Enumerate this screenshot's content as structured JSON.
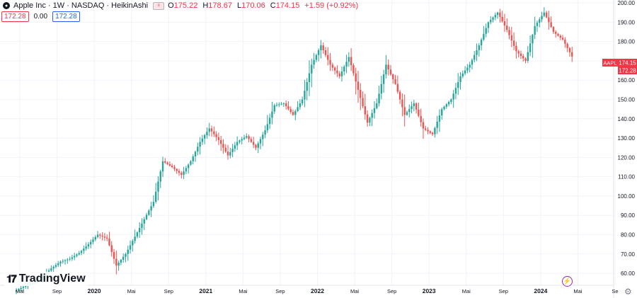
{
  "legend": {
    "title": "Apple Inc · 1W · NASDAQ · HeikinAshi",
    "logo_icon": "apple-icon",
    "o_label": "O",
    "o_value": "175.22",
    "h_label": "H",
    "h_value": "178.67",
    "l_label": "L",
    "l_value": "170.06",
    "c_label": "C",
    "c_value": "174.15",
    "change": "+1.59 (+0.92%)"
  },
  "pills": {
    "bid": "172.28",
    "spread": "0.00",
    "ask": "172.28"
  },
  "brand": {
    "name": "TradingView"
  },
  "colors": {
    "up": "#26a69a",
    "down": "#ef5350",
    "grid": "#f0f3fa",
    "axis_text": "#131722",
    "badge": "#f23645"
  },
  "chart_data": {
    "type": "candlestick",
    "symbol": "AAPL",
    "exchange": "NASDAQ",
    "interval": "1W",
    "style": "HeikinAshi",
    "y_ticks": [
      "60.00",
      "70.00",
      "80.00",
      "90.00",
      "100.00",
      "110.00",
      "120.00",
      "130.00",
      "140.00",
      "150.00",
      "160.00",
      "170.00",
      "180.00",
      "190.00",
      "200.00"
    ],
    "ylim": [
      56,
      201.5
    ],
    "x_ticks": [
      "Mai",
      "Sep",
      "2020",
      "Mai",
      "Sep",
      "2021",
      "Mai",
      "Sep",
      "2022",
      "Mai",
      "Sep",
      "2023",
      "Mai",
      "Sep",
      "2024",
      "Mai",
      "Se"
    ],
    "x_tick_month_index": [
      0,
      4,
      8,
      12,
      16,
      20,
      24,
      28,
      32,
      36,
      40,
      44,
      48,
      52,
      56,
      60,
      64
    ],
    "last_price_label": "AAPL",
    "last_price": "174.15",
    "prev_price": "172.28",
    "monthly_closes": [
      [
        50.5,
        53.0
      ],
      [
        53.0,
        55.0
      ],
      [
        55.0,
        58.0
      ],
      [
        58.0,
        62.5
      ],
      [
        62.5,
        66.0
      ],
      [
        66.0,
        67.5
      ],
      [
        67.5,
        70.5
      ],
      [
        70.5,
        75.0
      ],
      [
        75.0,
        80.0
      ],
      [
        80.0,
        78.0
      ],
      [
        78.0,
        64.0
      ],
      [
        64.0,
        70.0
      ],
      [
        70.0,
        79.0
      ],
      [
        79.0,
        88.0
      ],
      [
        88.0,
        97.0
      ],
      [
        97.0,
        118.0
      ],
      [
        118.0,
        115.0
      ],
      [
        115.0,
        111.0
      ],
      [
        111.0,
        118.0
      ],
      [
        118.0,
        128.0
      ],
      [
        128.0,
        135.0
      ],
      [
        135.0,
        129.0
      ],
      [
        129.0,
        121.0
      ],
      [
        121.0,
        128.0
      ],
      [
        128.0,
        131.0
      ],
      [
        131.0,
        125.0
      ],
      [
        125.0,
        134.0
      ],
      [
        134.0,
        147.0
      ],
      [
        147.0,
        148.0
      ],
      [
        148.0,
        142.0
      ],
      [
        142.0,
        150.0
      ],
      [
        150.0,
        168.0
      ],
      [
        168.0,
        178.0
      ],
      [
        178.0,
        168.0
      ],
      [
        168.0,
        162.0
      ],
      [
        162.0,
        172.0
      ],
      [
        172.0,
        155.0
      ],
      [
        155.0,
        138.0
      ],
      [
        138.0,
        148.0
      ],
      [
        148.0,
        168.0
      ],
      [
        168.0,
        158.0
      ],
      [
        158.0,
        142.0
      ],
      [
        142.0,
        148.0
      ],
      [
        148.0,
        135.0
      ],
      [
        135.0,
        132.0
      ],
      [
        132.0,
        145.0
      ],
      [
        145.0,
        150.0
      ],
      [
        150.0,
        162.0
      ],
      [
        162.0,
        168.0
      ],
      [
        168.0,
        178.0
      ],
      [
        178.0,
        190.0
      ],
      [
        190.0,
        195.0
      ],
      [
        195.0,
        186.0
      ],
      [
        186.0,
        175.0
      ],
      [
        175.0,
        170.0
      ],
      [
        170.0,
        188.0
      ],
      [
        188.0,
        195.0
      ],
      [
        195.0,
        185.0
      ],
      [
        185.0,
        181.0
      ],
      [
        181.0,
        172.28
      ]
    ]
  }
}
